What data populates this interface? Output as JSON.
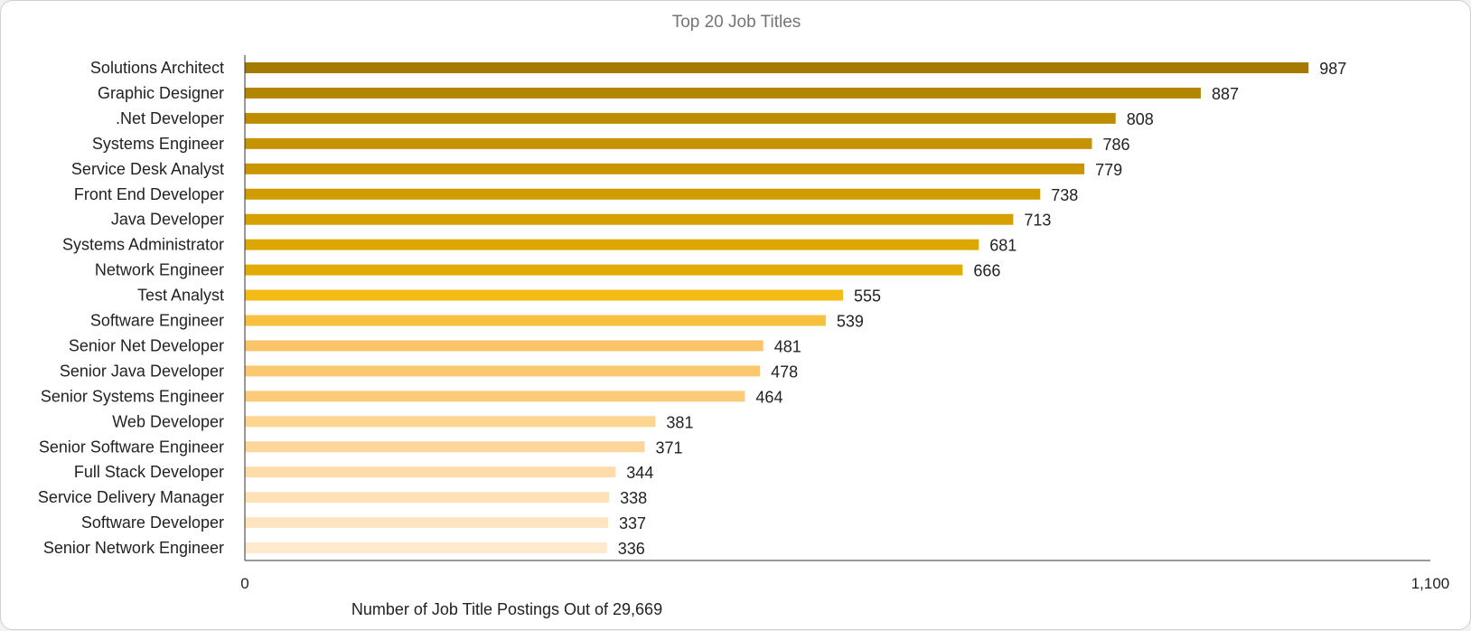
{
  "chart_data": {
    "type": "bar",
    "orientation": "horizontal",
    "title": "Top 20 Job Titles",
    "xlabel": "Number of Job Title Postings Out of 29,669",
    "ylabel": "",
    "xlim": [
      0,
      1100
    ],
    "x_ticks": [
      {
        "value": 0,
        "label": "0"
      },
      {
        "value": 1100,
        "label": "1,100"
      }
    ],
    "grid": false,
    "legend": "none",
    "categories": [
      "Solutions Architect",
      "Graphic Designer",
      ".Net Developer",
      "Systems Engineer",
      "Service Desk Analyst",
      "Front End Developer",
      "Java Developer",
      "Systems Administrator",
      "Network Engineer",
      "Test Analyst",
      "Software Engineer",
      "Senior Net Developer",
      "Senior Java Developer",
      "Senior Systems Engineer",
      "Web Developer",
      "Senior Software Engineer",
      "Full Stack Developer",
      "Service Delivery Manager",
      "Software Developer",
      "Senior Network Engineer"
    ],
    "values": [
      987,
      887,
      808,
      786,
      779,
      738,
      713,
      681,
      666,
      555,
      539,
      481,
      478,
      464,
      381,
      371,
      344,
      338,
      337,
      336
    ],
    "value_labels": [
      "987",
      "887",
      "808",
      "786",
      "779",
      "738",
      "713",
      "681",
      "666",
      "555",
      "539",
      "481",
      "478",
      "464",
      "381",
      "371",
      "344",
      "338",
      "337",
      "336"
    ],
    "colors": [
      "#a47a00",
      "#b48600",
      "#bd8d00",
      "#c59300",
      "#c99600",
      "#d09c00",
      "#d6a100",
      "#dda703",
      "#e2ab06",
      "#f4bb17",
      "#f7c13f",
      "#fac56a",
      "#fac870",
      "#fbcb7a",
      "#fcd590",
      "#fcd69a",
      "#fddcaa",
      "#fee1b7",
      "#fee5c2",
      "#fee9cf"
    ]
  }
}
